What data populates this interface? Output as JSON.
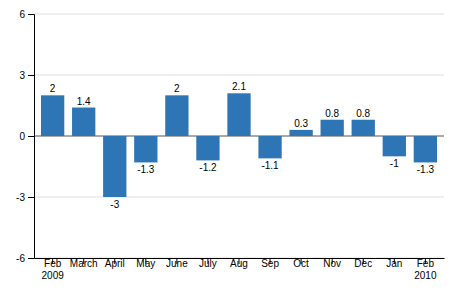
{
  "chart_data": {
    "type": "bar",
    "categories": [
      "Feb\n2009",
      "March",
      "April",
      "May",
      "June",
      "July",
      "Aug",
      "Sep",
      "Oct",
      "Nov",
      "Dec",
      "Jan",
      "Feb\n2010"
    ],
    "values": [
      2.0,
      1.4,
      -3.0,
      -1.3,
      2.0,
      -1.2,
      2.1,
      -1.1,
      0.3,
      0.8,
      0.8,
      -1.0,
      -1.3
    ],
    "color": "#2e75b6",
    "ylim": [
      -6,
      6
    ],
    "yticks": [
      -6,
      -3,
      0,
      3,
      6
    ],
    "grid": true,
    "data_labels": true
  }
}
